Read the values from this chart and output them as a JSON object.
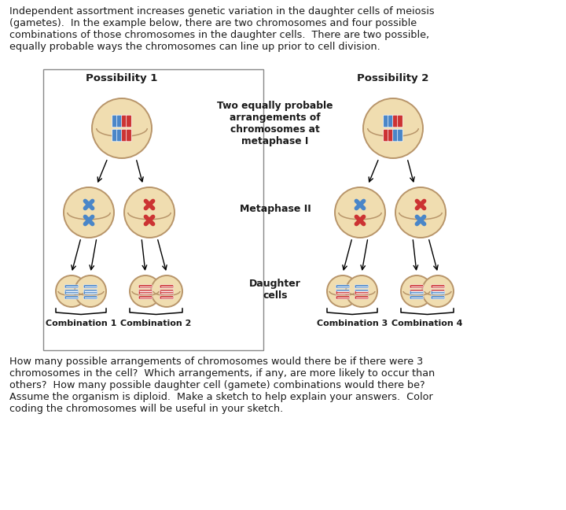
{
  "bg_color": "#ffffff",
  "cell_fill": "#f0ddb0",
  "cell_edge": "#b8956a",
  "blue_color": "#4a86c8",
  "red_color": "#cc3333",
  "text_color": "#1a1a1a",
  "bold_color": "#1a1a1a",
  "top_text": "Independent assortment increases genetic variation in the daughter cells of meiosis\n(gametes).  In the example below, there are two chromosomes and four possible\ncombinations of those chromosomes in the daughter cells.  There are two possible,\nequally probable ways the chromosomes can line up prior to cell division.",
  "bottom_text": "How many possible arrangements of chromosomes would there be if there were 3\nchromosomes in the cell?  Which arrangements, if any, are more likely to occur than\nothers?  How many possible daughter cell (gamete) combinations would there be?\nAssume the organism is diploid.  Make a sketch to help explain your answers.  Color\ncoding the chromosomes will be useful in your sketch.",
  "poss1_label": "Possibility 1",
  "poss2_label": "Possibility 2",
  "mid_text": "Two equally probable\narrangements of\nchromosomes at\nmetaphase I",
  "metaphase2_label": "Metaphase II",
  "daughter_label": "Daughter\ncells",
  "comb1_label": "Combination 1",
  "comb2_label": "Combination 2",
  "comb3_label": "Combination 3",
  "comb4_label": "Combination 4",
  "border_color": "#888888"
}
